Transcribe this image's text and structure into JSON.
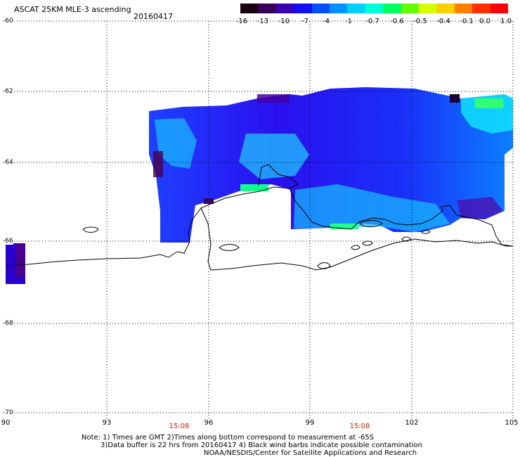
{
  "header": {
    "title": "ASCAT 25KM MLE-3 ascending",
    "date": "20160417"
  },
  "colorbar": {
    "labels": [
      "-16",
      "-13",
      "-10",
      "-7",
      "-4",
      "-1",
      "-0.7",
      "-0.6",
      "-0.5",
      "-0.4",
      "-0.1",
      "0.0",
      "1.0"
    ],
    "colors": [
      "#1a0010",
      "#38005a",
      "#3c00b4",
      "#1010f0",
      "#0050ff",
      "#0090ff",
      "#00d0ff",
      "#00ffd8",
      "#00ff60",
      "#60ff00",
      "#d8ff00",
      "#ffd000",
      "#ff8000",
      "#ff3000",
      "#ff0000"
    ]
  },
  "axes": {
    "lat_labels": [
      "-60",
      "-62",
      "-64",
      "-66",
      "-68",
      "-70"
    ],
    "lon_labels": [
      "90",
      "93",
      "96",
      "99",
      "102",
      "105"
    ],
    "time_labels": [
      "15:08",
      "15:08"
    ]
  },
  "notes": {
    "line1": "Note: 1) Times are GMT 2)Times along bottom correspond to measurement at -65S",
    "line2": "3)Data buffer is 22 hrs from 20160417 4) Black wind barbs indicate possible contamination",
    "line3": "NOAA/NESDIS/Center for Satellite Applications and Research"
  },
  "style": {
    "coastline_color": "#000000",
    "grid_color": "#000000",
    "time_color": "#c81e00"
  }
}
